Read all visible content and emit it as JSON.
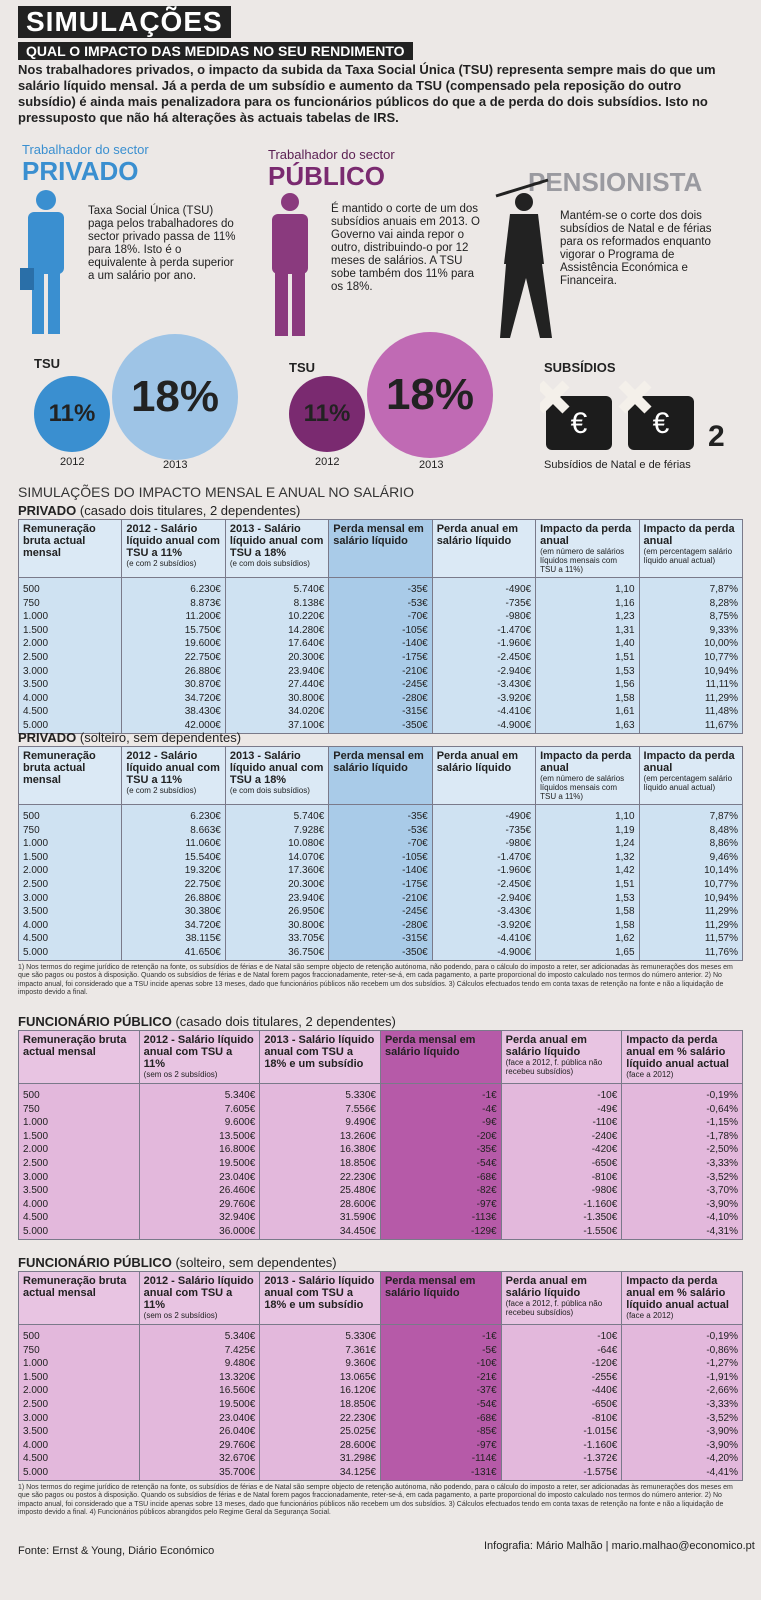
{
  "header": {
    "title": "SIMULAÇÕES",
    "subtitle": "QUAL O IMPACTO DAS MEDIDAS NO SEU RENDIMENTO",
    "intro": "Nos trabalhadores privados, o impacto da subida da Taxa Social Única (TSU) representa sempre mais do que um salário líquido mensal. Já a perda de um subsídio e aumento da TSU (compensado pela reposição do outro subsídio) é ainda mais penalizadora para os funcionários públicos do que a de perda do dois subsídios. Isto no pressuposto que não há alterações às actuais tabelas de IRS."
  },
  "profiles": [
    {
      "kicker": "Trabalhador do sector",
      "name": "PRIVADO",
      "text": "Taxa Social Única (TSU) paga pelos trabalhadores do sector privado passa de 11% para 18%. Isto é o equivalente à perda superior a um salário por ano."
    },
    {
      "kicker": "Trabalhador do sector",
      "name": "PÚBLICO",
      "text": "É mantido o corte de um dos subsídios anuais em 2013. O Governo vai ainda repor o outro, distribuindo-o por 12 meses de salários. A TSU sobe também dos 11% para os 18%."
    },
    {
      "name": "PENSIONISTA",
      "text": "Mantém-se o corte dos dois subsídios de Natal e de férias para os reformados enquanto vigorar o Programa de Assistência Económica e Financeira."
    }
  ],
  "rates": [
    {
      "label": "TSU",
      "before": "11%",
      "after": "18%",
      "year_before": "2012",
      "year_after": "2013"
    },
    {
      "label": "TSU",
      "before": "11%",
      "after": "18%",
      "year_before": "2012",
      "year_after": "2013"
    }
  ],
  "subsidies": {
    "label": "SUBSÍDIOS",
    "count": "2",
    "caption": "Subsídios de Natal e de férias"
  },
  "section_title": "SIMULAÇÕES DO IMPACTO MENSAL E ANUAL NO SALÁRIO",
  "tables": [
    {
      "group": "PRIVADO",
      "situation": "(casado dois titulares, 2 dependentes)",
      "headers": [
        {
          "text": "Remuneração bruta actual mensal"
        },
        {
          "text": "2012 - Salário líquido anual com TSU a 11%",
          "note": "(e com 2 subsídios)"
        },
        {
          "text": "2013 - Salário líquido anual com TSU a 18%",
          "note": "(e com dois subsídios)"
        },
        {
          "text": "Perda mensal em salário líquido"
        },
        {
          "text": "Perda anual em salário líquido"
        },
        {
          "text": "Impacto da perda anual",
          "note": "(em número de salários líquidos mensais com TSU a 11%)"
        },
        {
          "text": "Impacto da perda anual",
          "note": "(em percentagem salário líquido anual actual)"
        }
      ],
      "rows": [
        [
          "500",
          "6.230€",
          "5.740€",
          "-35€",
          "-490€",
          "1,10",
          "7,87%"
        ],
        [
          "750",
          "8.873€",
          "8.138€",
          "-53€",
          "-735€",
          "1,16",
          "8,28%"
        ],
        [
          "1.000",
          "11.200€",
          "10.220€",
          "-70€",
          "-980€",
          "1,23",
          "8,75%"
        ],
        [
          "1.500",
          "15.750€",
          "14.280€",
          "-105€",
          "-1.470€",
          "1,31",
          "9,33%"
        ],
        [
          "2.000",
          "19.600€",
          "17.640€",
          "-140€",
          "-1.960€",
          "1,40",
          "10,00%"
        ],
        [
          "2.500",
          "22.750€",
          "20.300€",
          "-175€",
          "-2.450€",
          "1,51",
          "10,77%"
        ],
        [
          "3.000",
          "26.880€",
          "23.940€",
          "-210€",
          "-2.940€",
          "1,53",
          "10,94%"
        ],
        [
          "3.500",
          "30.870€",
          "27.440€",
          "-245€",
          "-3.430€",
          "1,56",
          "11,11%"
        ],
        [
          "4.000",
          "34.720€",
          "30.800€",
          "-280€",
          "-3.920€",
          "1,58",
          "11,29%"
        ],
        [
          "4.500",
          "38.430€",
          "34.020€",
          "-315€",
          "-4.410€",
          "1,61",
          "11,48%"
        ],
        [
          "5.000",
          "42.000€",
          "37.100€",
          "-350€",
          "-4.900€",
          "1,63",
          "11,67%"
        ]
      ]
    },
    {
      "group": "PRIVADO",
      "situation": "(solteiro, sem dependentes)",
      "headers": [
        {
          "text": "Remuneração bruta actual mensal"
        },
        {
          "text": "2012 - Salário líquido anual com TSU a 11%",
          "note": "(e com 2 subsídios)"
        },
        {
          "text": "2013 - Salário líquido anual com TSU a 18%",
          "note": "(e com dois subsídios)"
        },
        {
          "text": "Perda mensal em salário líquido"
        },
        {
          "text": "Perda anual em salário líquido"
        },
        {
          "text": "Impacto da perda anual",
          "note": "(em número de salários líquidos mensais com TSU a 11%)"
        },
        {
          "text": "Impacto da perda anual",
          "note": "(em percentagem salário líquido anual actual)"
        }
      ],
      "rows": [
        [
          "500",
          "6.230€",
          "5.740€",
          "-35€",
          "-490€",
          "1,10",
          "7,87%"
        ],
        [
          "750",
          "8.663€",
          "7.928€",
          "-53€",
          "-735€",
          "1,19",
          "8,48%"
        ],
        [
          "1.000",
          "11.060€",
          "10.080€",
          "-70€",
          "-980€",
          "1,24",
          "8,86%"
        ],
        [
          "1.500",
          "15.540€",
          "14.070€",
          "-105€",
          "-1.470€",
          "1,32",
          "9,46%"
        ],
        [
          "2.000",
          "19.320€",
          "17.360€",
          "-140€",
          "-1.960€",
          "1,42",
          "10,14%"
        ],
        [
          "2.500",
          "22.750€",
          "20.300€",
          "-175€",
          "-2.450€",
          "1,51",
          "10,77%"
        ],
        [
          "3.000",
          "26.880€",
          "23.940€",
          "-210€",
          "-2.940€",
          "1,53",
          "10,94%"
        ],
        [
          "3.500",
          "30.380€",
          "26.950€",
          "-245€",
          "-3.430€",
          "1,58",
          "11,29%"
        ],
        [
          "4.000",
          "34.720€",
          "30.800€",
          "-280€",
          "-3.920€",
          "1,58",
          "11,29%"
        ],
        [
          "4.500",
          "38.115€",
          "33.705€",
          "-315€",
          "-4.410€",
          "1,62",
          "11,57%"
        ],
        [
          "5.000",
          "41.650€",
          "36.750€",
          "-350€",
          "-4.900€",
          "1,65",
          "11,76%"
        ]
      ],
      "footnotes": "1) Nos termos do regime jurídico de retenção na fonte, os subsídios de férias e de Natal são sempre objecto de retenção autónoma, não podendo, para o cálculo do imposto a reter, ser adicionadas às remunerações dos meses em que são pagos ou postos à disposição. Quando os subsídios de férias e de Natal forem pagos fraccionadamente, reter-se-á, em cada pagamento, a parte proporcional do imposto calculado nos termos do número anterior. 2) No impacto anual, foi considerado que a TSU incide apenas sobre 13 meses, dado que funcionários públicos não recebem um dos subsídios. 3) Cálculos efectuados tendo em conta taxas de retenção na fonte e não a liquidação de imposto devido a final."
    },
    {
      "group": "FUNCIONÁRIO PÚBLICO",
      "situation": "(casado dois titulares, 2 dependentes)",
      "headers": [
        {
          "text": "Remuneração bruta actual mensal"
        },
        {
          "text": "2012 - Salário líquido anual com TSU a 11%",
          "note": "(sem os 2 subsídios)"
        },
        {
          "text": "2013 - Salário líquido anual com TSU a 18% e um subsídio"
        },
        {
          "text": "Perda mensal em salário líquido"
        },
        {
          "text": "Perda anual em salário líquido",
          "note": "(face a 2012, f. pública não recebeu subsídios)"
        },
        {
          "text": "Impacto da perda anual em % salário líquido anual actual",
          "note": "(face a 2012)"
        }
      ],
      "rows": [
        [
          "500",
          "5.340€",
          "5.330€",
          "-1€",
          "-10€",
          "-0,19%"
        ],
        [
          "750",
          "7.605€",
          "7.556€",
          "-4€",
          "-49€",
          "-0,64%"
        ],
        [
          "1.000",
          "9.600€",
          "9.490€",
          "-9€",
          "-110€",
          "-1,15%"
        ],
        [
          "1.500",
          "13.500€",
          "13.260€",
          "-20€",
          "-240€",
          "-1,78%"
        ],
        [
          "2.000",
          "16.800€",
          "16.380€",
          "-35€",
          "-420€",
          "-2,50%"
        ],
        [
          "2.500",
          "19.500€",
          "18.850€",
          "-54€",
          "-650€",
          "-3,33%"
        ],
        [
          "3.000",
          "23.040€",
          "22.230€",
          "-68€",
          "-810€",
          "-3,52%"
        ],
        [
          "3.500",
          "26.460€",
          "25.480€",
          "-82€",
          "-980€",
          "-3,70%"
        ],
        [
          "4.000",
          "29.760€",
          "28.600€",
          "-97€",
          "-1.160€",
          "-3,90%"
        ],
        [
          "4.500",
          "32.940€",
          "31.590€",
          "-113€",
          "-1.350€",
          "-4,10%"
        ],
        [
          "5.000",
          "36.000€",
          "34.450€",
          "-129€",
          "-1.550€",
          "-4,31%"
        ]
      ]
    },
    {
      "group": "FUNCIONÁRIO PÚBLICO",
      "situation": "(solteiro, sem dependentes)",
      "headers": [
        {
          "text": "Remuneração bruta actual mensal"
        },
        {
          "text": "2012 - Salário líquido anual com TSU a 11%",
          "note": "(sem os 2 subsídios)"
        },
        {
          "text": "2013 - Salário líquido anual com TSU a 18% e um subsídio"
        },
        {
          "text": "Perda mensal em salário líquido"
        },
        {
          "text": "Perda anual em salário líquido",
          "note": "(face a 2012, f. pública não recebeu subsídios)"
        },
        {
          "text": "Impacto da perda anual em % salário líquido anual actual",
          "note": "(face a 2012)"
        }
      ],
      "rows": [
        [
          "500",
          "5.340€",
          "5.330€",
          "-1€",
          "-10€",
          "-0,19%"
        ],
        [
          "750",
          "7.425€",
          "7.361€",
          "-5€",
          "-64€",
          "-0,86%"
        ],
        [
          "1.000",
          "9.480€",
          "9.360€",
          "-10€",
          "-120€",
          "-1,27%"
        ],
        [
          "1.500",
          "13.320€",
          "13.065€",
          "-21€",
          "-255€",
          "-1,91%"
        ],
        [
          "2.000",
          "16.560€",
          "16.120€",
          "-37€",
          "-440€",
          "-2,66%"
        ],
        [
          "2.500",
          "19.500€",
          "18.850€",
          "-54€",
          "-650€",
          "-3,33%"
        ],
        [
          "3.000",
          "23.040€",
          "22.230€",
          "-68€",
          "-810€",
          "-3,52%"
        ],
        [
          "3.500",
          "26.040€",
          "25.025€",
          "-85€",
          "-1.015€",
          "-3,90%"
        ],
        [
          "4.000",
          "29.760€",
          "28.600€",
          "-97€",
          "-1.160€",
          "-3,90%"
        ],
        [
          "4.500",
          "32.670€",
          "31.298€",
          "-114€",
          "-1.372€",
          "-4,20%"
        ],
        [
          "5.000",
          "35.700€",
          "34.125€",
          "-131€",
          "-1.575€",
          "-4,41%"
        ]
      ],
      "footnotes": "1) Nos termos do regime jurídico de retenção na fonte, os subsídios de férias e de Natal são sempre objecto de retenção autónoma, não podendo, para o cálculo do imposto a reter, ser adicionadas às remunerações dos meses em que são pagos ou postos à disposição. Quando os subsídios de férias e de Natal forem pagos fraccionadamente, reter-se-á, em cada pagamento, a parte proporcional do imposto calculado nos termos do número anterior. 2) No impacto anual, foi considerado que a TSU incide apenas sobre 13 meses, dado que funcionários públicos não recebem um dos subsídios. 3) Cálculos efectuados tendo em conta taxas de retenção na fonte e não a liquidação de imposto devido a final. 4) Funcionários públicos abrangidos pelo Regime Geral da Segurança Social."
    }
  ],
  "footer": {
    "source": "Fonte: Ernst & Young, Diário Económico",
    "credit": "Infografia: Mário Malhão | mario.malhao@economico.pt"
  }
}
